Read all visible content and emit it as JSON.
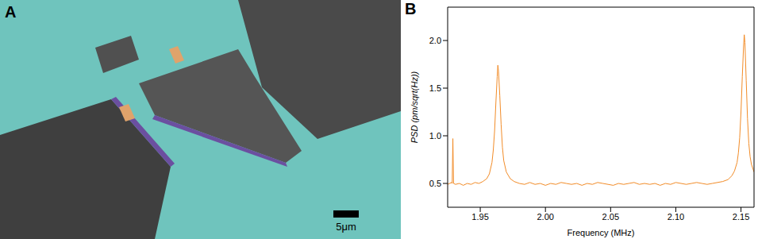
{
  "panel_a": {
    "label": "A",
    "scale_bar": "5μm"
  },
  "panel_b": {
    "label": "B"
  },
  "chart_data": {
    "type": "line",
    "x_label": "Frequency (MHz)",
    "y_label": "PSD (pm/sqrt(Hz))",
    "xlim": [
      1.925,
      2.16
    ],
    "xticks": [
      1.95,
      {
        "value": 2,
        "label": "2.00"
      },
      2.05,
      {
        "value": 2.1,
        "label": "2.10"
      },
      2.15
    ],
    "ylim": [
      0.25,
      2.35
    ],
    "yticks": [
      0.5,
      {
        "value": 1,
        "label": "1.0"
      },
      1.5,
      {
        "value": 2,
        "label": "2.0"
      }
    ],
    "grid": false,
    "color": "#f28c28",
    "x": [
      1.925,
      1.928,
      1.9285,
      1.929,
      1.9295,
      1.931,
      1.934,
      1.937,
      1.94,
      1.943,
      1.946,
      1.949,
      1.952,
      1.955,
      1.957,
      1.959,
      1.96,
      1.961,
      1.962,
      1.963,
      1.9635,
      1.964,
      1.965,
      1.966,
      1.967,
      1.968,
      1.97,
      1.973,
      1.976,
      1.98,
      1.984,
      1.988,
      1.992,
      1.996,
      2.0,
      2.004,
      2.008,
      2.012,
      2.016,
      2.02,
      2.024,
      2.028,
      2.032,
      2.036,
      2.04,
      2.044,
      2.048,
      2.052,
      2.056,
      2.06,
      2.064,
      2.068,
      2.072,
      2.076,
      2.08,
      2.084,
      2.088,
      2.092,
      2.096,
      2.1,
      2.104,
      2.108,
      2.112,
      2.116,
      2.12,
      2.124,
      2.128,
      2.132,
      2.136,
      2.14,
      2.143,
      2.145,
      2.147,
      2.148,
      2.149,
      2.15,
      2.151,
      2.152,
      2.1525,
      2.153,
      2.154,
      2.155,
      2.156,
      2.157,
      2.158,
      2.16
    ],
    "values": [
      0.49,
      0.51,
      0.5,
      0.97,
      0.5,
      0.49,
      0.5,
      0.48,
      0.5,
      0.49,
      0.51,
      0.5,
      0.52,
      0.55,
      0.6,
      0.72,
      0.85,
      1.05,
      1.35,
      1.62,
      1.74,
      1.68,
      1.42,
      1.12,
      0.88,
      0.74,
      0.62,
      0.55,
      0.52,
      0.5,
      0.49,
      0.51,
      0.49,
      0.5,
      0.48,
      0.5,
      0.49,
      0.51,
      0.5,
      0.49,
      0.5,
      0.48,
      0.5,
      0.49,
      0.51,
      0.5,
      0.49,
      0.48,
      0.5,
      0.49,
      0.5,
      0.51,
      0.49,
      0.5,
      0.49,
      0.5,
      0.48,
      0.5,
      0.49,
      0.51,
      0.5,
      0.49,
      0.5,
      0.51,
      0.5,
      0.49,
      0.5,
      0.51,
      0.52,
      0.54,
      0.58,
      0.63,
      0.72,
      0.82,
      0.98,
      1.25,
      1.62,
      1.95,
      2.06,
      1.98,
      1.58,
      1.18,
      0.92,
      0.78,
      0.7,
      0.62
    ]
  }
}
